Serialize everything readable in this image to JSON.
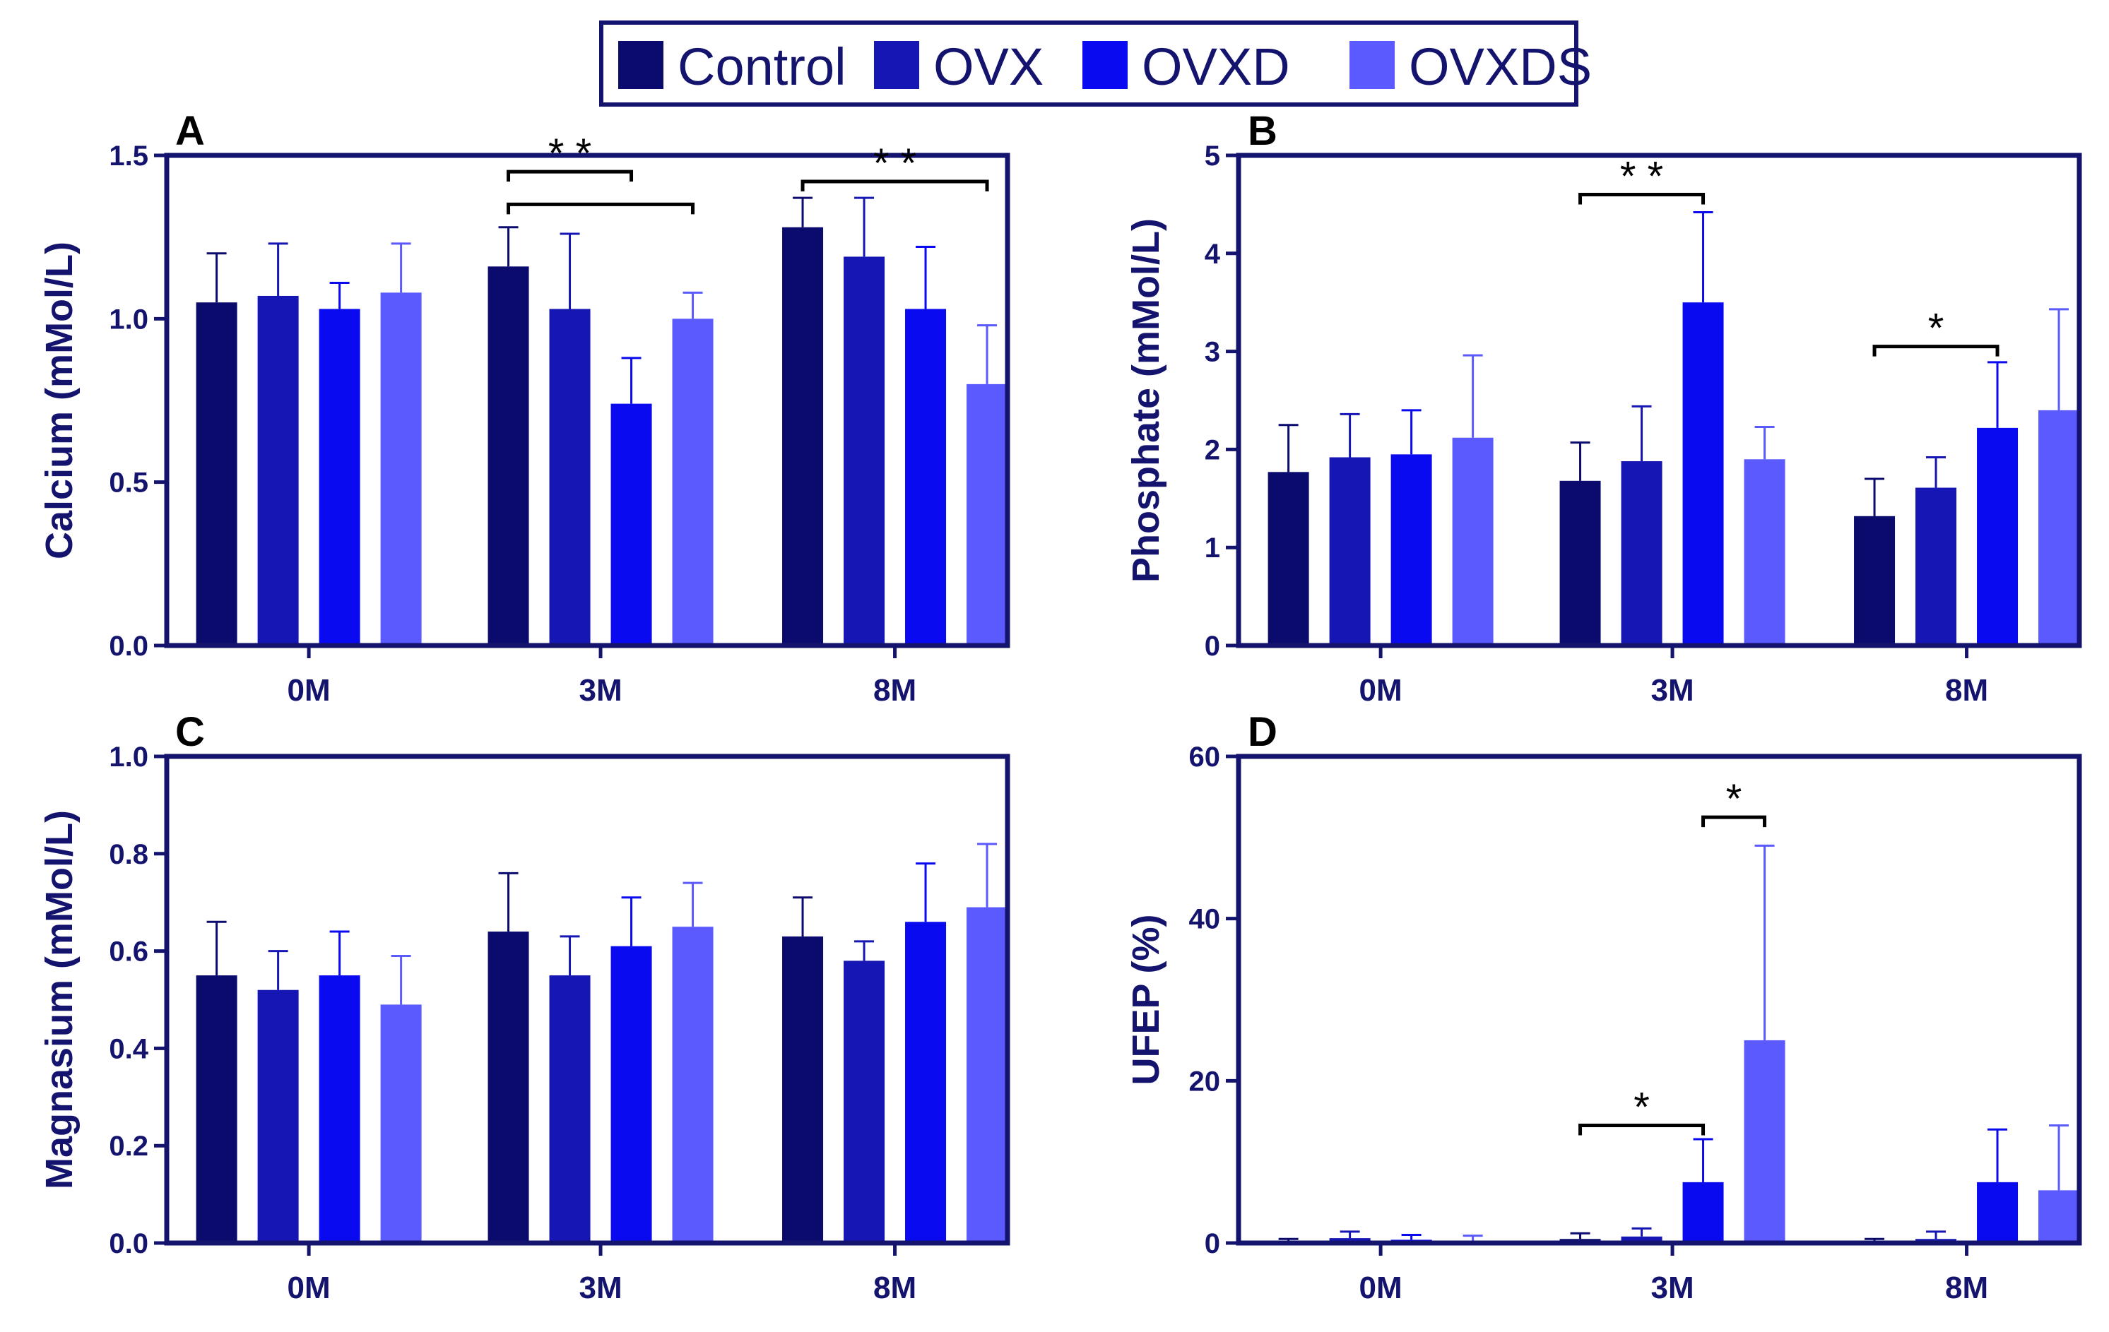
{
  "figure": {
    "legend": {
      "entries": [
        {
          "name": "Control",
          "color": "#0b0b6e"
        },
        {
          "name": "OVX",
          "color": "#1616b4"
        },
        {
          "name": "OVXD",
          "color": "#0a0af0"
        },
        {
          "name": "OVXDS",
          "color": "#5a5aff"
        }
      ]
    }
  },
  "chart_data": [
    {
      "panel": "A",
      "type": "bar",
      "categories": [
        "0M",
        "3M",
        "8M"
      ],
      "ylabel": "Calcium (mMol/L)",
      "ylim": [
        0,
        1.5
      ],
      "yticks": [
        0,
        0.5,
        1.0,
        1.5
      ],
      "ytick_labels": [
        "0.0",
        "0.5",
        "1.0",
        "1.5"
      ],
      "series": [
        {
          "name": "Control",
          "values": [
            1.05,
            1.16,
            1.28
          ],
          "errors": [
            0.15,
            0.12,
            0.09
          ]
        },
        {
          "name": "OVX",
          "values": [
            1.07,
            1.03,
            1.19
          ],
          "errors": [
            0.16,
            0.23,
            0.18
          ]
        },
        {
          "name": "OVXD",
          "values": [
            1.03,
            0.74,
            1.03
          ],
          "errors": [
            0.08,
            0.14,
            0.19
          ]
        },
        {
          "name": "OVXDS",
          "values": [
            1.08,
            1.0,
            0.8
          ],
          "errors": [
            0.15,
            0.08,
            0.18
          ]
        }
      ],
      "annotations": [
        {
          "category": 1,
          "from_series": 0,
          "to_series": 2,
          "level": 1.45,
          "label": "* *"
        },
        {
          "category": 1,
          "from_series": 0,
          "to_series": 3,
          "level": 1.35,
          "label": ""
        },
        {
          "category": 2,
          "from_series": 0,
          "to_series": 3,
          "level": 1.42,
          "label": "* *"
        }
      ]
    },
    {
      "panel": "B",
      "type": "bar",
      "categories": [
        "0M",
        "3M",
        "8M"
      ],
      "ylabel": "Phosphate (mMol/L)",
      "ylim": [
        0,
        5
      ],
      "yticks": [
        0,
        1,
        2,
        3,
        4,
        5
      ],
      "ytick_labels": [
        "0",
        "1",
        "2",
        "3",
        "4",
        "5"
      ],
      "series": [
        {
          "name": "Control",
          "values": [
            1.77,
            1.68,
            1.32
          ],
          "errors": [
            0.48,
            0.39,
            0.38
          ]
        },
        {
          "name": "OVX",
          "values": [
            1.92,
            1.88,
            1.61
          ],
          "errors": [
            0.44,
            0.56,
            0.31
          ]
        },
        {
          "name": "OVXD",
          "values": [
            1.95,
            3.5,
            2.22
          ],
          "errors": [
            0.45,
            0.92,
            0.67
          ]
        },
        {
          "name": "OVXDS",
          "values": [
            2.12,
            1.9,
            2.4
          ],
          "errors": [
            0.84,
            0.33,
            1.03
          ]
        }
      ],
      "annotations": [
        {
          "category": 1,
          "from_series": 0,
          "to_series": 2,
          "level": 4.6,
          "label": "* *"
        },
        {
          "category": 2,
          "from_series": 0,
          "to_series": 2,
          "level": 3.05,
          "label": "*"
        }
      ]
    },
    {
      "panel": "C",
      "type": "bar",
      "categories": [
        "0M",
        "3M",
        "8M"
      ],
      "ylabel": "Magnasium (mMol/L)",
      "ylim": [
        0,
        1.0
      ],
      "yticks": [
        0,
        0.2,
        0.4,
        0.6,
        0.8,
        1.0
      ],
      "ytick_labels": [
        "0.0",
        "0.2",
        "0.4",
        "0.6",
        "0.8",
        "1.0"
      ],
      "series": [
        {
          "name": "Control",
          "values": [
            0.55,
            0.64,
            0.63
          ],
          "errors": [
            0.11,
            0.12,
            0.08
          ]
        },
        {
          "name": "OVX",
          "values": [
            0.52,
            0.55,
            0.58
          ],
          "errors": [
            0.08,
            0.08,
            0.04
          ]
        },
        {
          "name": "OVXD",
          "values": [
            0.55,
            0.61,
            0.66
          ],
          "errors": [
            0.09,
            0.1,
            0.12
          ]
        },
        {
          "name": "OVXDS",
          "values": [
            0.49,
            0.65,
            0.69
          ],
          "errors": [
            0.1,
            0.09,
            0.13
          ]
        }
      ],
      "annotations": []
    },
    {
      "panel": "D",
      "type": "bar",
      "categories": [
        "0M",
        "3M",
        "8M"
      ],
      "ylabel": "UFEP (%)",
      "ylim": [
        0,
        60
      ],
      "yticks": [
        0,
        20,
        40,
        60
      ],
      "ytick_labels": [
        "0",
        "20",
        "40",
        "60"
      ],
      "series": [
        {
          "name": "Control",
          "values": [
            0.2,
            0.5,
            0.2
          ],
          "errors": [
            0.3,
            0.7,
            0.3
          ]
        },
        {
          "name": "OVX",
          "values": [
            0.6,
            0.8,
            0.5
          ],
          "errors": [
            0.8,
            1.0,
            0.9
          ]
        },
        {
          "name": "OVXD",
          "values": [
            0.4,
            7.5,
            7.5
          ],
          "errors": [
            0.6,
            5.3,
            6.5
          ]
        },
        {
          "name": "OVXDS",
          "values": [
            0.3,
            25.0,
            6.5
          ],
          "errors": [
            0.6,
            24.0,
            8.0
          ]
        }
      ],
      "annotations": [
        {
          "category": 1,
          "from_series": 2,
          "to_series": 3,
          "level": 52.5,
          "label": "*"
        },
        {
          "category": 1,
          "from_series": 0,
          "to_series": 2,
          "level": 14.5,
          "label": "*"
        }
      ]
    }
  ]
}
